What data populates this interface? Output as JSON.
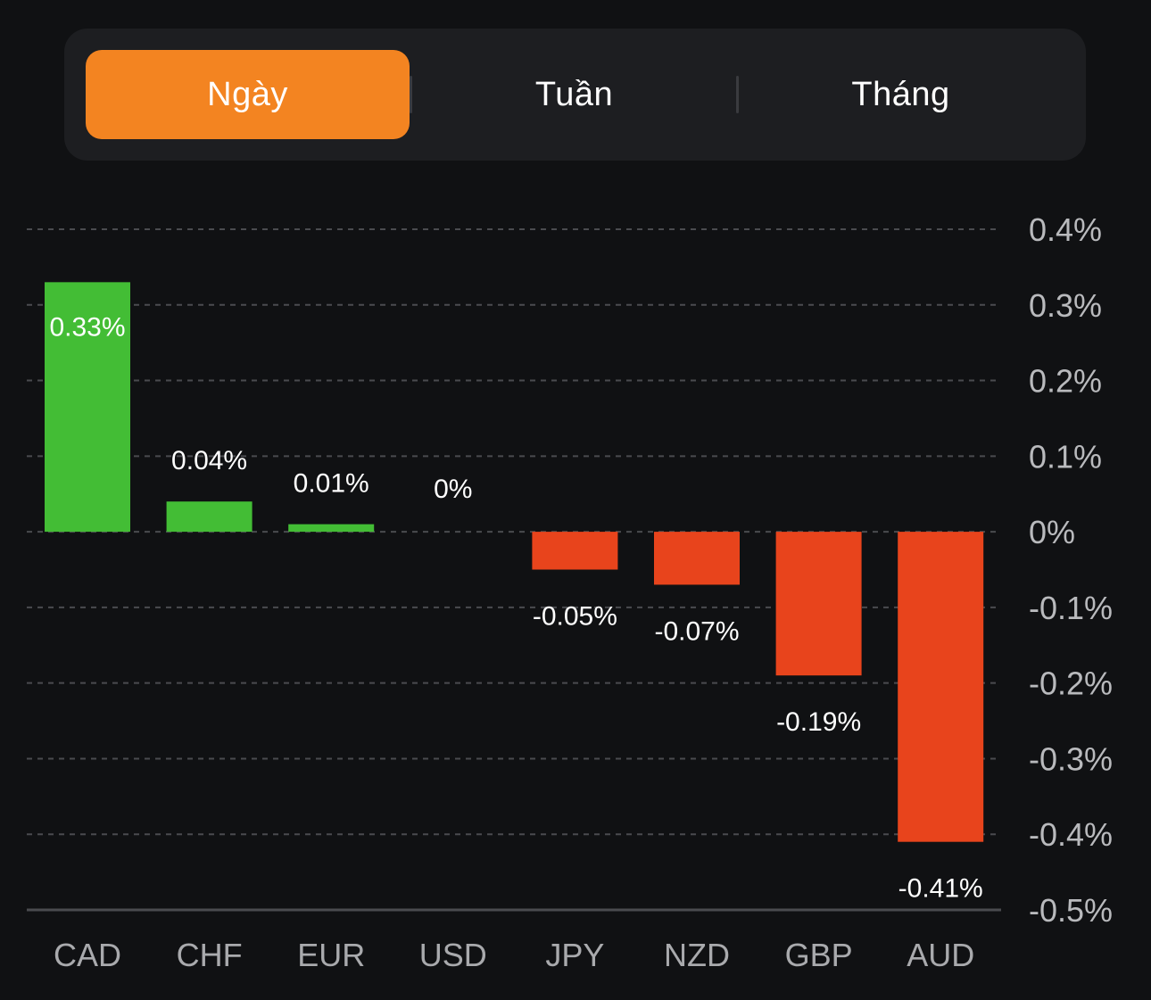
{
  "tabs": [
    {
      "label": "Ngày",
      "active": true
    },
    {
      "label": "Tuần",
      "active": false
    },
    {
      "label": "Tháng",
      "active": false
    }
  ],
  "colors": {
    "accent": "#f38421",
    "positive": "#43bd35",
    "negative": "#e8441c",
    "background": "#101113",
    "panel": "#1d1e21"
  },
  "chart_data": {
    "type": "bar",
    "categories": [
      "CAD",
      "CHF",
      "EUR",
      "USD",
      "JPY",
      "NZD",
      "GBP",
      "AUD"
    ],
    "values": [
      0.33,
      0.04,
      0.01,
      0,
      -0.05,
      -0.07,
      -0.19,
      -0.41
    ],
    "value_labels": [
      "0.33%",
      "0.04%",
      "0.01%",
      "0%",
      "-0.05%",
      "-0.07%",
      "-0.19%",
      "-0.41%"
    ],
    "yticks": [
      0.4,
      0.3,
      0.2,
      0.1,
      0,
      -0.1,
      -0.2,
      -0.3,
      -0.4,
      -0.5
    ],
    "ytick_labels": [
      "0.4%",
      "0.3%",
      "0.2%",
      "0.1%",
      "0%",
      "-0.1%",
      "-0.2%",
      "-0.3%",
      "-0.4%",
      "-0.5%"
    ],
    "ylim": [
      -0.5,
      0.4
    ],
    "grid": true,
    "yaxis_side": "right"
  }
}
